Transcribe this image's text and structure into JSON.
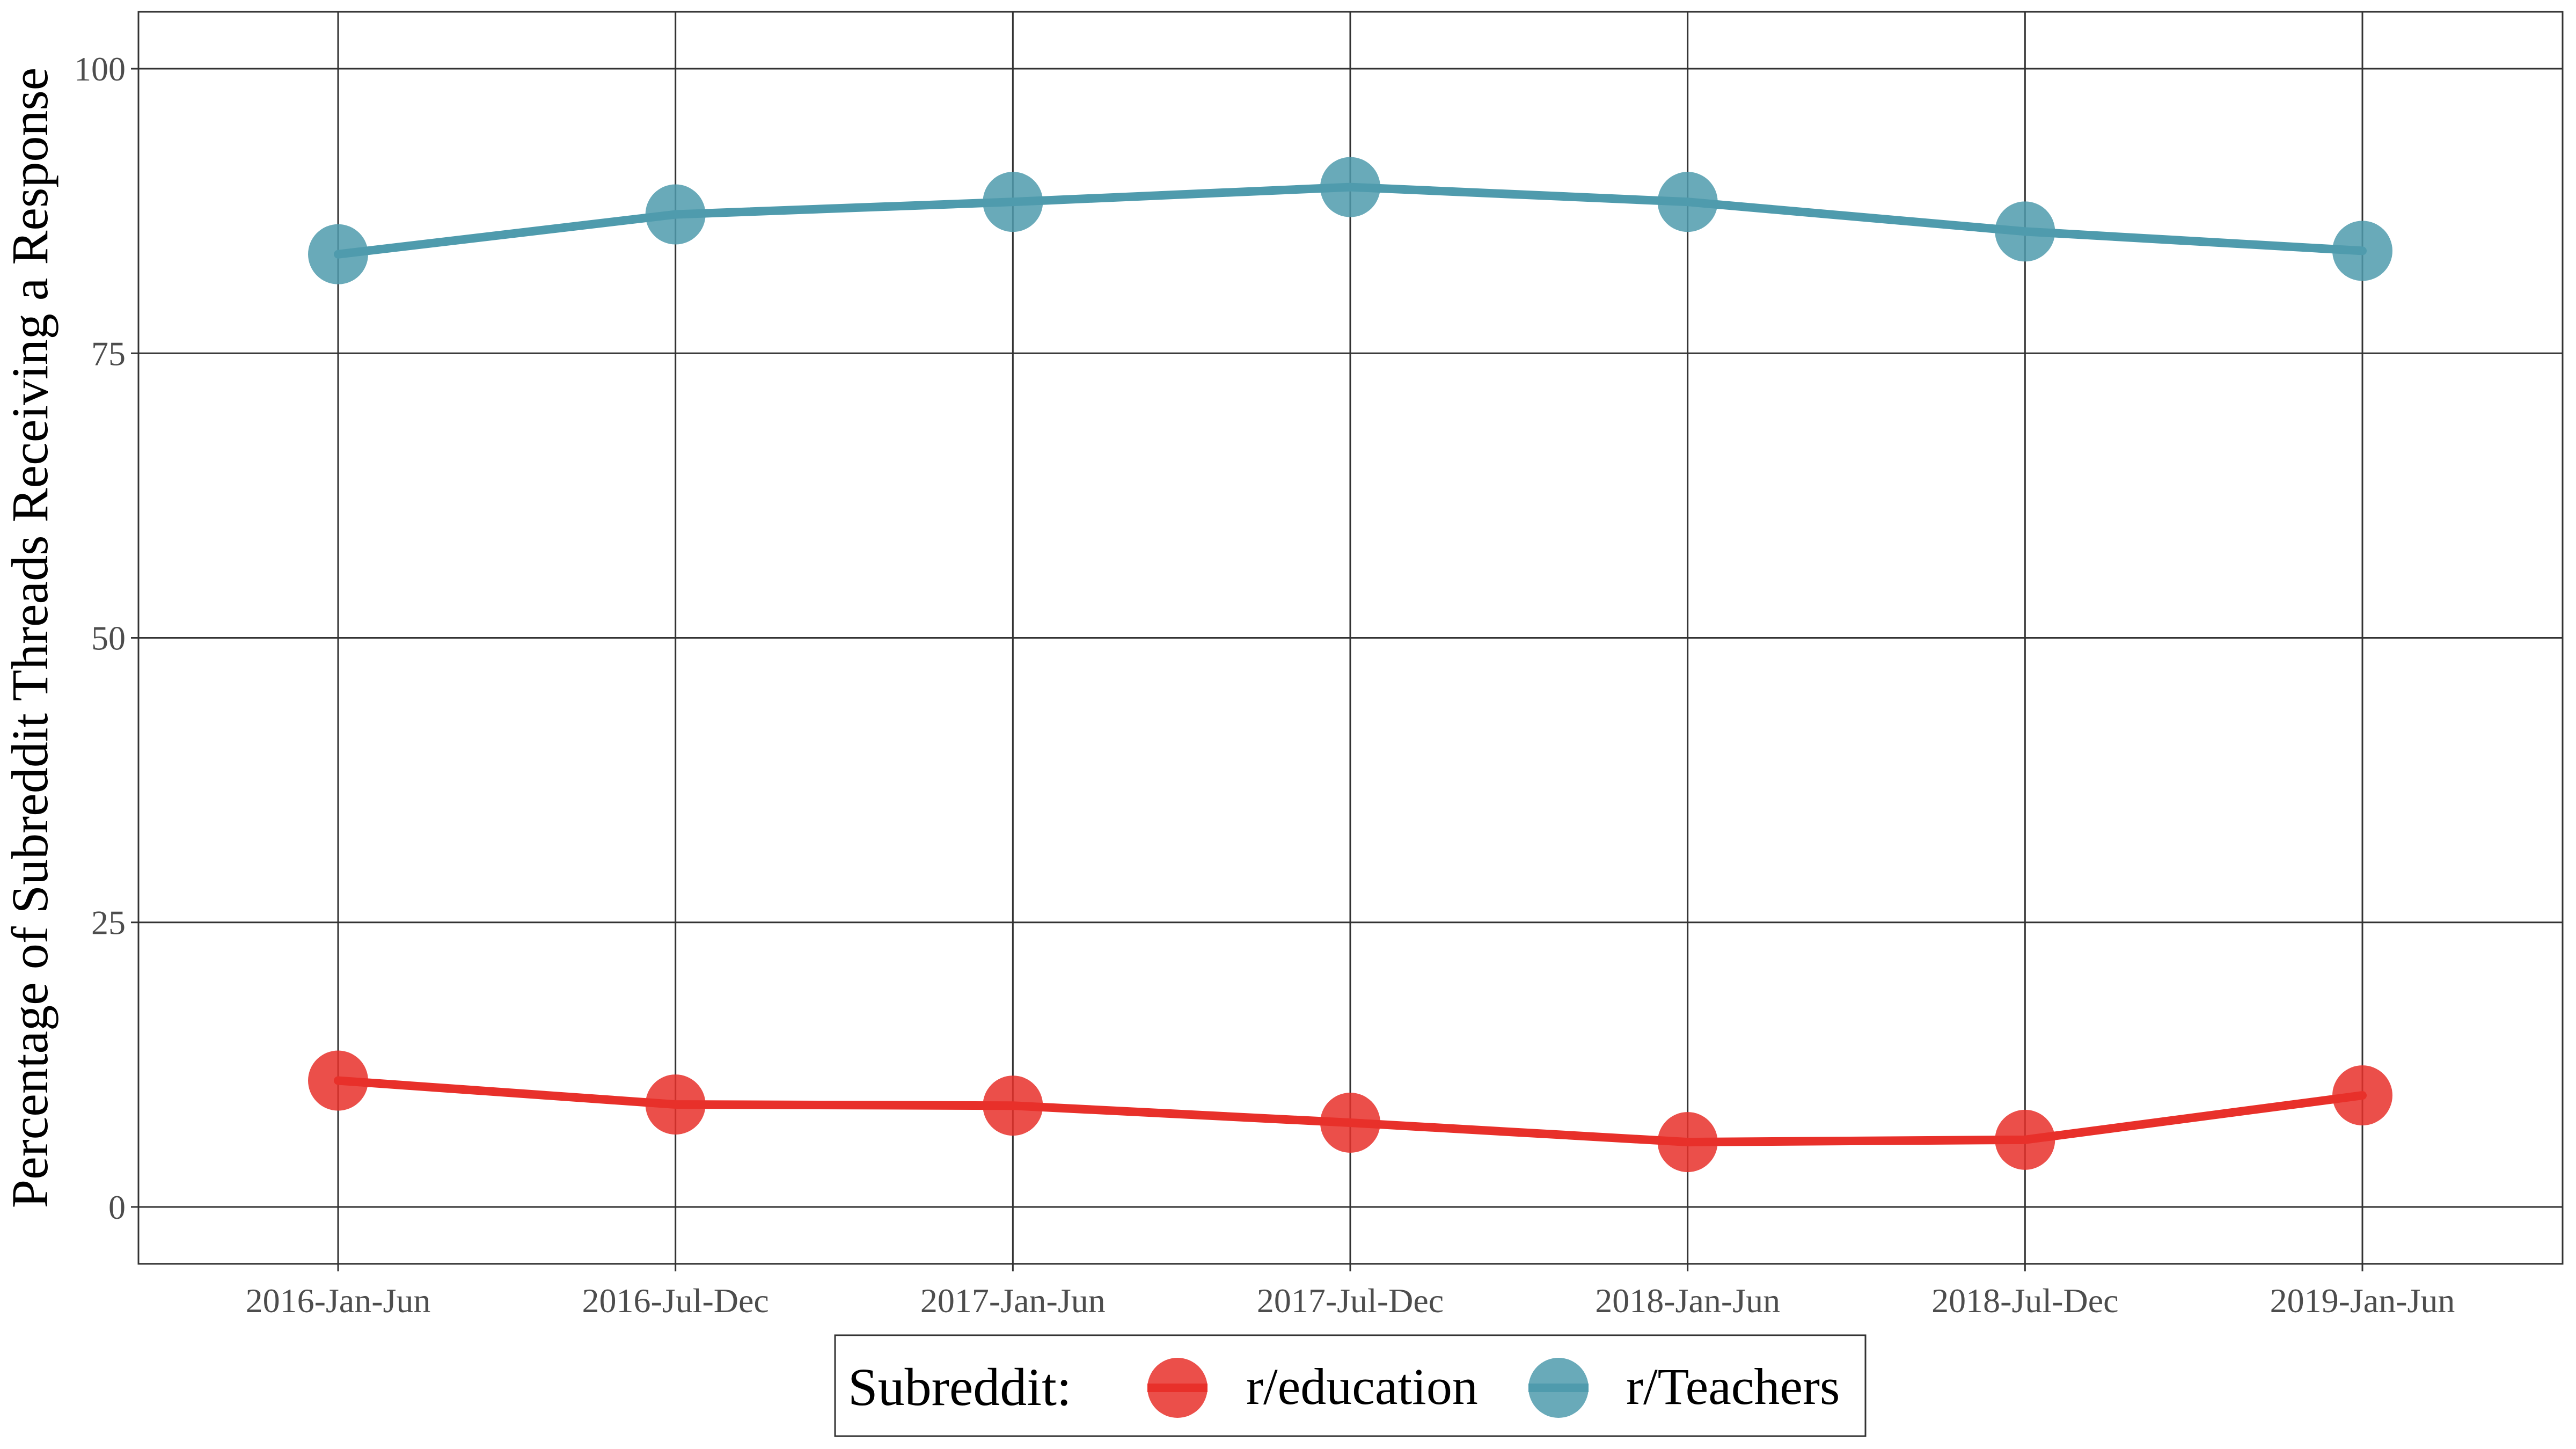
{
  "chart_data": {
    "type": "line",
    "title": "",
    "xlabel": "",
    "ylabel": "Percentage of Subreddit Threads Receiving a Response",
    "categories": [
      "2016-Jan-Jun",
      "2016-Jul-Dec",
      "2017-Jan-Jun",
      "2017-Jul-Dec",
      "2018-Jan-Jun",
      "2018-Jul-Dec",
      "2019-Jan-Jun"
    ],
    "ylim": [
      -5,
      105
    ],
    "yticks": [
      0,
      25,
      50,
      75,
      100
    ],
    "grid": true,
    "legend_title": "Subreddit:",
    "legend_position": "bottom",
    "series": [
      {
        "name": "r/education",
        "color": "#e8302a",
        "values": [
          11.1,
          9.0,
          8.9,
          7.4,
          5.7,
          5.9,
          9.8
        ]
      },
      {
        "name": "r/Teachers",
        "color": "#4f9bad",
        "values": [
          83.7,
          87.2,
          88.3,
          89.6,
          88.3,
          85.7,
          84.0
        ]
      }
    ]
  }
}
